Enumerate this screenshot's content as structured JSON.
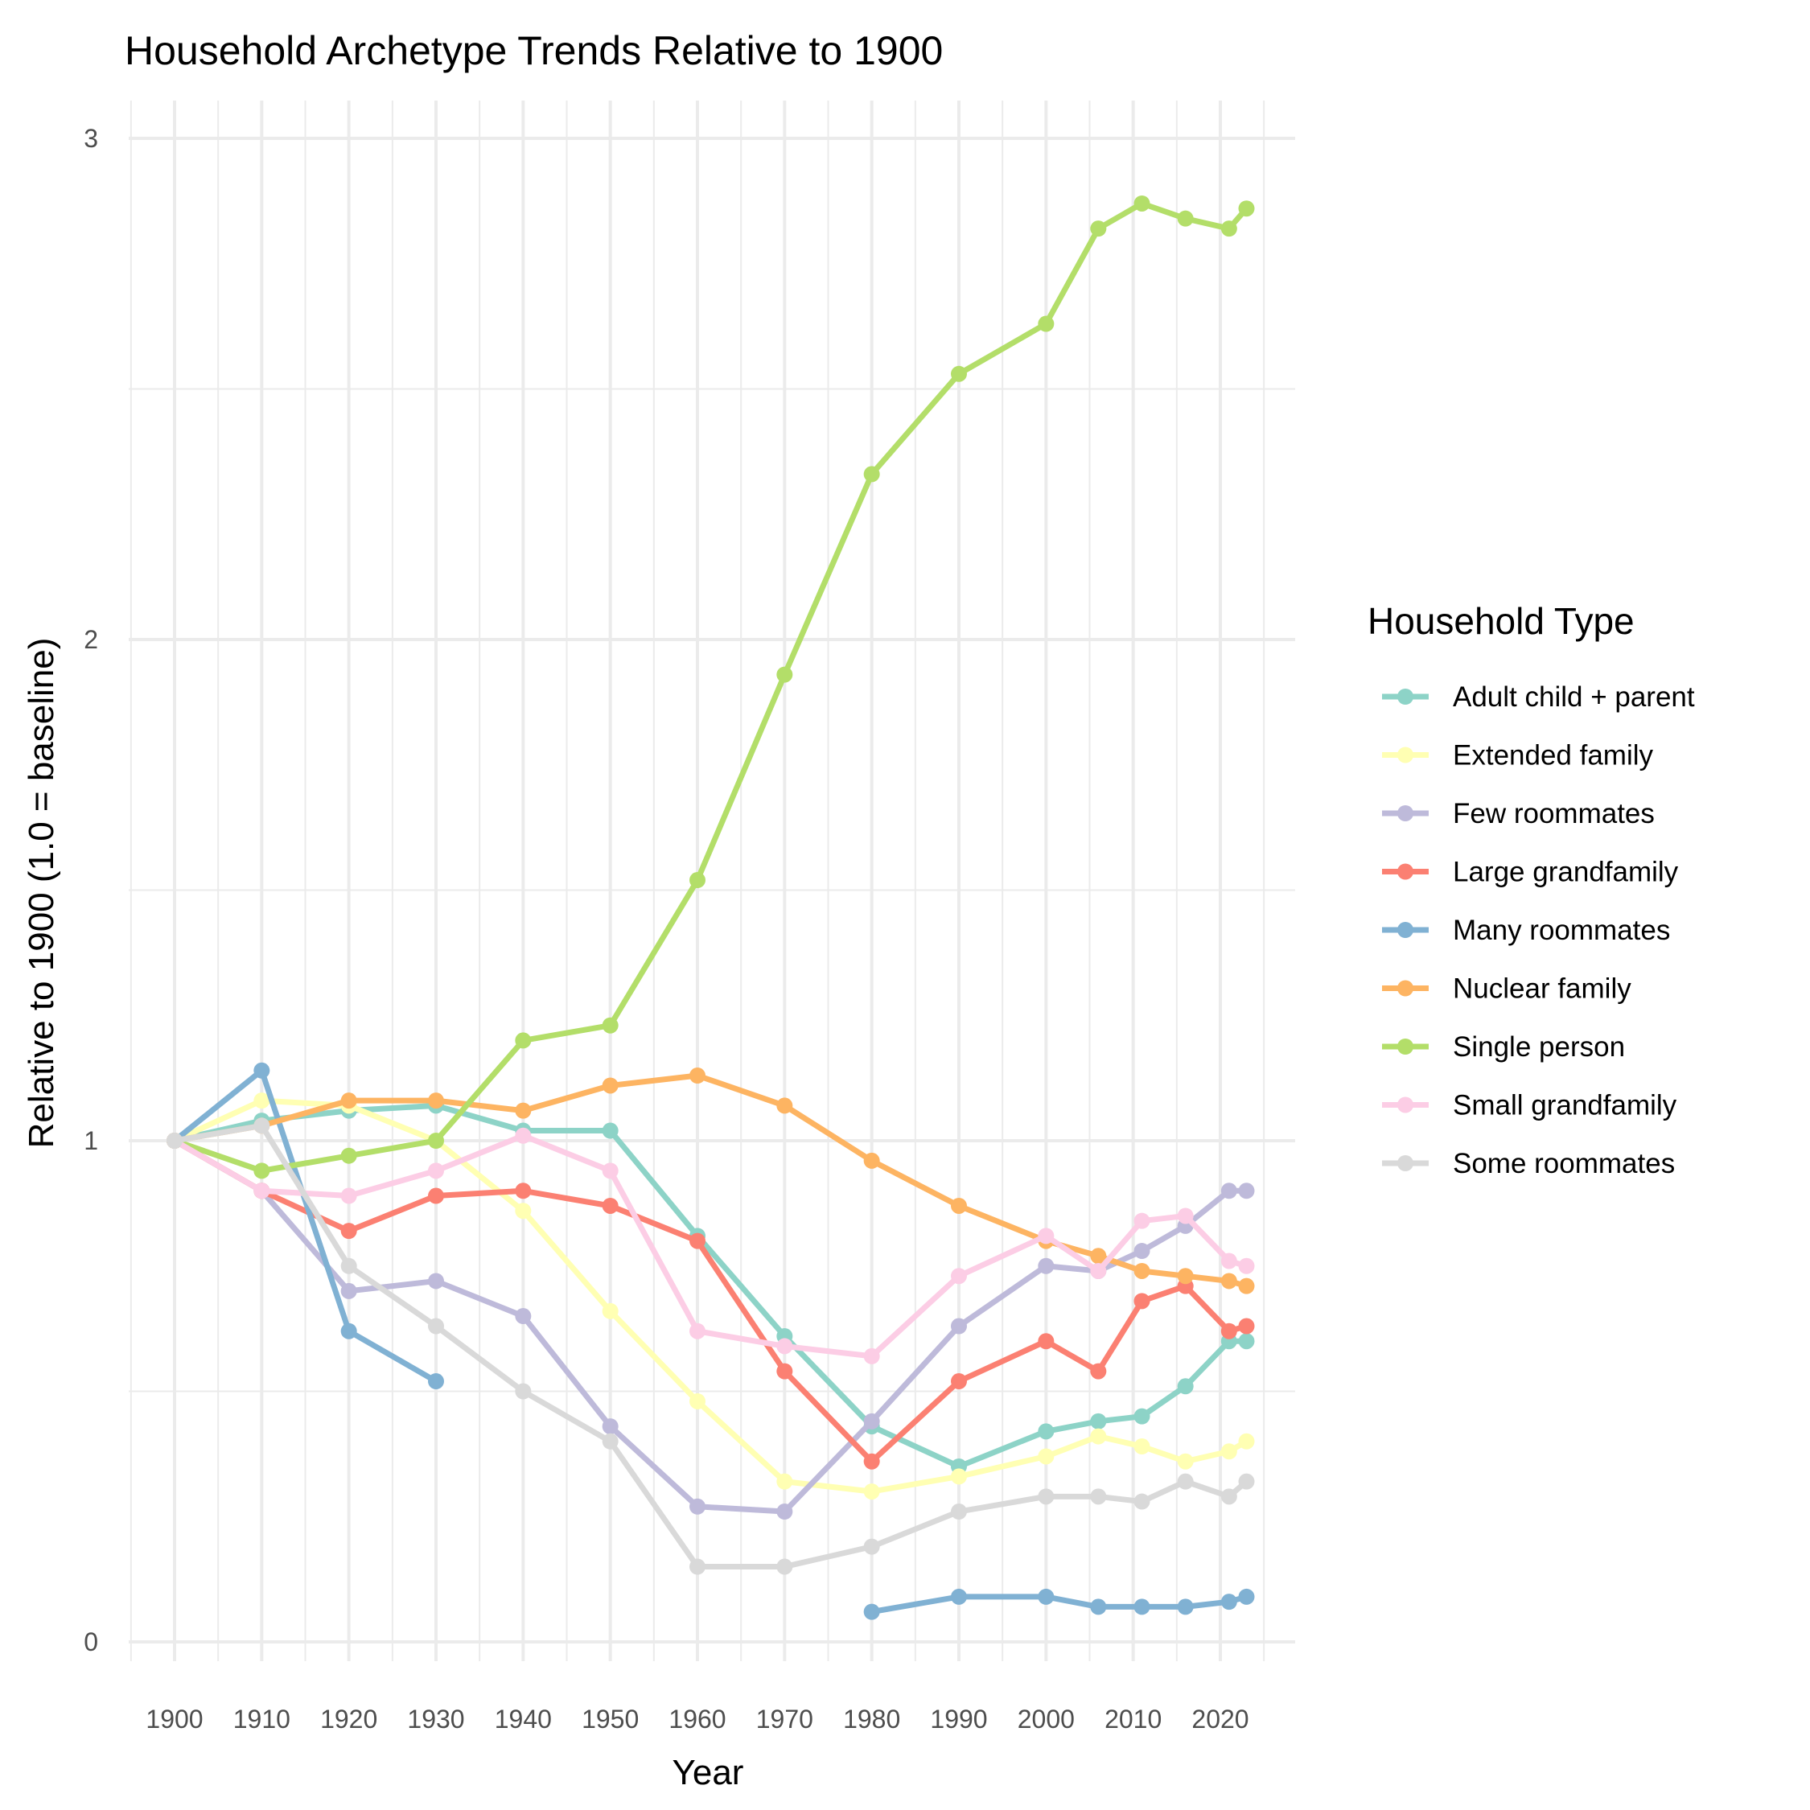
{
  "chart_data": {
    "type": "line",
    "title": "Household Archetype Trends Relative to 1900",
    "xlabel": "Year",
    "ylabel": "Relative to 1900 (1.0 = baseline)",
    "xlim": [
      1895,
      2026
    ],
    "ylim": [
      0,
      3
    ],
    "x_ticks": [
      1900,
      1910,
      1920,
      1930,
      1940,
      1950,
      1960,
      1970,
      1980,
      1990,
      2000,
      2010,
      2020
    ],
    "y_ticks": [
      0,
      1,
      2,
      3
    ],
    "grid": true,
    "legend": {
      "title": "Household Type",
      "placement": "right",
      "entries": [
        "Adult child + parent",
        "Extended family",
        "Few roommates",
        "Large grandfamily",
        "Many roommates",
        "Nuclear family",
        "Single person",
        "Small grandfamily",
        "Some roommates"
      ]
    },
    "series": [
      {
        "name": "Adult child + parent",
        "color": "#8dd3c7",
        "points": [
          [
            1900,
            1.0
          ],
          [
            1910,
            1.04
          ],
          [
            1920,
            1.06
          ],
          [
            1930,
            1.07
          ],
          [
            1940,
            1.02
          ],
          [
            1950,
            1.02
          ],
          [
            1960,
            0.81
          ],
          [
            1970,
            0.61
          ],
          [
            1980,
            0.43
          ],
          [
            1990,
            0.35
          ],
          [
            2000,
            0.42
          ],
          [
            2006,
            0.44
          ],
          [
            2011,
            0.45
          ],
          [
            2016,
            0.51
          ],
          [
            2021,
            0.6
          ],
          [
            2023,
            0.6
          ]
        ]
      },
      {
        "name": "Extended family",
        "color": "#ffffb3",
        "points": [
          [
            1900,
            1.0
          ],
          [
            1910,
            1.08
          ],
          [
            1920,
            1.07
          ],
          [
            1930,
            1.0
          ],
          [
            1940,
            0.86
          ],
          [
            1950,
            0.66
          ],
          [
            1960,
            0.48
          ],
          [
            1970,
            0.32
          ],
          [
            1980,
            0.3
          ],
          [
            1990,
            0.33
          ],
          [
            2000,
            0.37
          ],
          [
            2006,
            0.41
          ],
          [
            2011,
            0.39
          ],
          [
            2016,
            0.36
          ],
          [
            2021,
            0.38
          ],
          [
            2023,
            0.4
          ]
        ]
      },
      {
        "name": "Few roommates",
        "color": "#bebada",
        "points": [
          [
            1900,
            1.0
          ],
          [
            1910,
            0.9
          ],
          [
            1920,
            0.7
          ],
          [
            1930,
            0.72
          ],
          [
            1940,
            0.65
          ],
          [
            1950,
            0.43
          ],
          [
            1960,
            0.27
          ],
          [
            1970,
            0.26
          ],
          [
            1980,
            0.44
          ],
          [
            1990,
            0.63
          ],
          [
            2000,
            0.75
          ],
          [
            2006,
            0.74
          ],
          [
            2011,
            0.78
          ],
          [
            2016,
            0.83
          ],
          [
            2021,
            0.9
          ],
          [
            2023,
            0.9
          ]
        ]
      },
      {
        "name": "Large grandfamily",
        "color": "#fb8072",
        "points": [
          [
            1900,
            1.0
          ],
          [
            1910,
            0.9
          ],
          [
            1920,
            0.82
          ],
          [
            1930,
            0.89
          ],
          [
            1940,
            0.9
          ],
          [
            1950,
            0.87
          ],
          [
            1960,
            0.8
          ],
          [
            1970,
            0.54
          ],
          [
            1980,
            0.36
          ],
          [
            1990,
            0.52
          ],
          [
            2000,
            0.6
          ],
          [
            2006,
            0.54
          ],
          [
            2011,
            0.68
          ],
          [
            2016,
            0.71
          ],
          [
            2021,
            0.62
          ],
          [
            2023,
            0.63
          ]
        ]
      },
      {
        "name": "Many roommates",
        "color": "#80b1d3",
        "points": [
          [
            1900,
            1.0
          ],
          [
            1910,
            1.14
          ],
          [
            1920,
            0.62
          ],
          [
            1930,
            0.52
          ],
          null,
          [
            1980,
            0.06
          ],
          [
            1990,
            0.09
          ],
          [
            2000,
            0.09
          ],
          [
            2006,
            0.07
          ],
          [
            2011,
            0.07
          ],
          [
            2016,
            0.07
          ],
          [
            2021,
            0.08
          ],
          [
            2023,
            0.09
          ]
        ]
      },
      {
        "name": "Nuclear family",
        "color": "#fdb462",
        "points": [
          [
            1900,
            1.0
          ],
          [
            1910,
            1.03
          ],
          [
            1920,
            1.08
          ],
          [
            1930,
            1.08
          ],
          [
            1940,
            1.06
          ],
          [
            1950,
            1.11
          ],
          [
            1960,
            1.13
          ],
          [
            1970,
            1.07
          ],
          [
            1980,
            0.96
          ],
          [
            1990,
            0.87
          ],
          [
            2000,
            0.8
          ],
          [
            2006,
            0.77
          ],
          [
            2011,
            0.74
          ],
          [
            2016,
            0.73
          ],
          [
            2021,
            0.72
          ],
          [
            2023,
            0.71
          ]
        ]
      },
      {
        "name": "Single person",
        "color": "#b3de69",
        "points": [
          [
            1900,
            1.0
          ],
          [
            1910,
            0.94
          ],
          [
            1920,
            0.97
          ],
          [
            1930,
            1.0
          ],
          [
            1940,
            1.2
          ],
          [
            1950,
            1.23
          ],
          [
            1960,
            1.52
          ],
          [
            1970,
            1.93
          ],
          [
            1980,
            2.33
          ],
          [
            1990,
            2.53
          ],
          [
            2000,
            2.63
          ],
          [
            2006,
            2.82
          ],
          [
            2011,
            2.87
          ],
          [
            2016,
            2.84
          ],
          [
            2021,
            2.82
          ],
          [
            2023,
            2.86
          ]
        ]
      },
      {
        "name": "Small grandfamily",
        "color": "#fccde5",
        "points": [
          [
            1900,
            1.0
          ],
          [
            1910,
            0.9
          ],
          [
            1920,
            0.89
          ],
          [
            1930,
            0.94
          ],
          [
            1940,
            1.01
          ],
          [
            1950,
            0.94
          ],
          [
            1960,
            0.62
          ],
          [
            1970,
            0.59
          ],
          [
            1980,
            0.57
          ],
          [
            1990,
            0.73
          ],
          [
            2000,
            0.81
          ],
          [
            2006,
            0.74
          ],
          [
            2011,
            0.84
          ],
          [
            2016,
            0.85
          ],
          [
            2021,
            0.76
          ],
          [
            2023,
            0.75
          ]
        ]
      },
      {
        "name": "Some roommates",
        "color": "#d9d9d9",
        "points": [
          [
            1900,
            1.0
          ],
          [
            1910,
            1.03
          ],
          [
            1920,
            0.75
          ],
          [
            1930,
            0.63
          ],
          [
            1940,
            0.5
          ],
          [
            1950,
            0.4
          ],
          [
            1960,
            0.15
          ],
          [
            1970,
            0.15
          ],
          [
            1980,
            0.19
          ],
          [
            1990,
            0.26
          ],
          [
            2000,
            0.29
          ],
          [
            2006,
            0.29
          ],
          [
            2011,
            0.28
          ],
          [
            2016,
            0.32
          ],
          [
            2021,
            0.29
          ],
          [
            2023,
            0.32
          ]
        ]
      }
    ]
  }
}
